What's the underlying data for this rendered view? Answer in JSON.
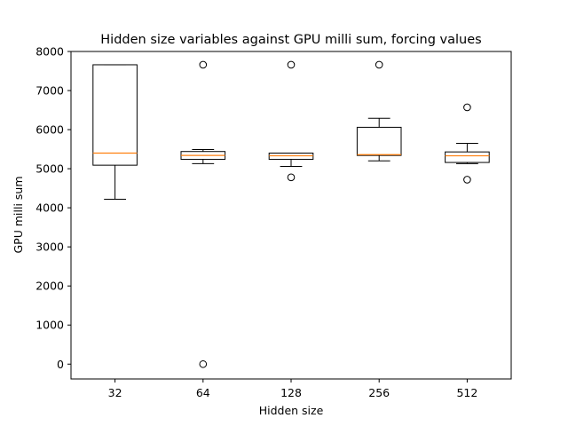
{
  "chart_data": {
    "type": "box",
    "title": "Hidden size variables against GPU milli sum, forcing values",
    "xlabel": "Hidden size",
    "ylabel": "GPU milli sum",
    "ylim": [
      -380,
      8000
    ],
    "yticks": [
      0,
      1000,
      2000,
      3000,
      4000,
      5000,
      6000,
      7000,
      8000
    ],
    "grid": false,
    "colors": {
      "box": "#000000",
      "median": "#ff7f0e",
      "background": "#ffffff"
    },
    "categories": [
      "32",
      "64",
      "128",
      "256",
      "512"
    ],
    "boxes": [
      {
        "label": "32",
        "whisker_low": 4220,
        "q1": 5090,
        "median": 5400,
        "q3": 7660,
        "whisker_high": 7660,
        "outliers": []
      },
      {
        "label": "64",
        "whisker_low": 5130,
        "q1": 5240,
        "median": 5340,
        "q3": 5440,
        "whisker_high": 5490,
        "outliers": [
          7660,
          0
        ]
      },
      {
        "label": "128",
        "whisker_low": 5060,
        "q1": 5240,
        "median": 5330,
        "q3": 5400,
        "whisker_high": 5400,
        "outliers": [
          7660,
          4780
        ]
      },
      {
        "label": "256",
        "whisker_low": 5200,
        "q1": 5340,
        "median": 5360,
        "q3": 6060,
        "whisker_high": 6290,
        "outliers": [
          7660
        ]
      },
      {
        "label": "512",
        "whisker_low": 5130,
        "q1": 5160,
        "median": 5330,
        "q3": 5430,
        "whisker_high": 5650,
        "outliers": [
          6570,
          4720
        ]
      }
    ]
  }
}
